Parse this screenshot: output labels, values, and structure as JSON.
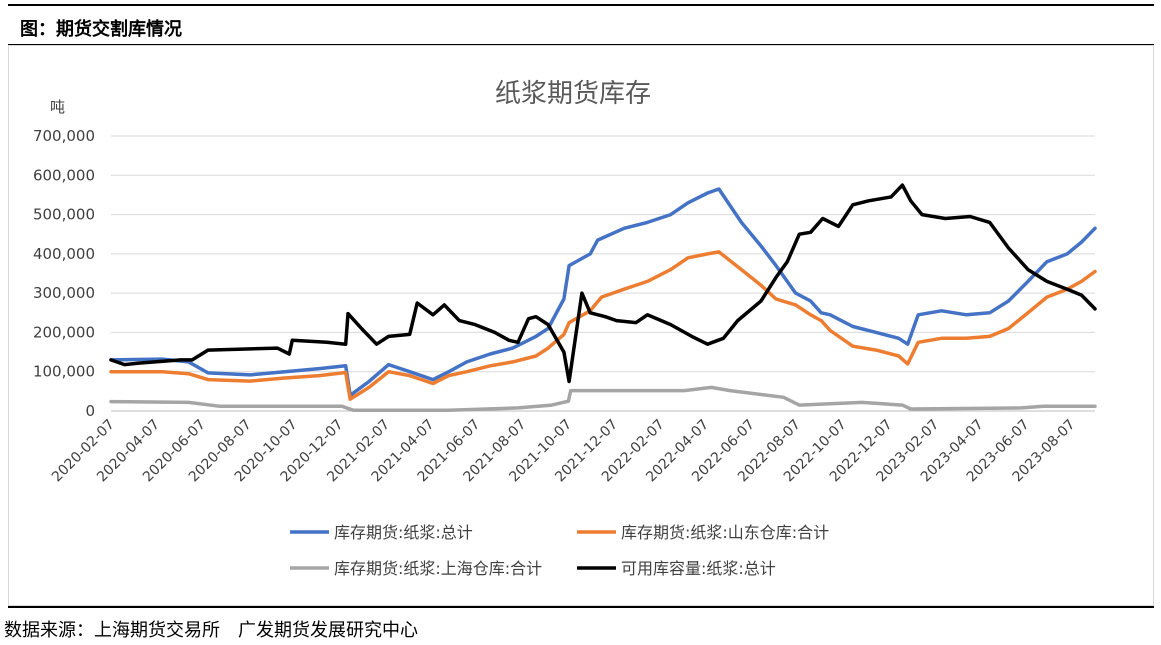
{
  "header": {
    "title": "图：期货交割库情况"
  },
  "footer": {
    "source": "数据来源：上海期货交易所　广发期货发展研究中心"
  },
  "chart_data": {
    "type": "line",
    "title": "纸浆期货库存",
    "ylabel": "吨",
    "ylim": [
      0,
      700000
    ],
    "yticks": [
      "0",
      "100,000",
      "200,000",
      "300,000",
      "400,000",
      "500,000",
      "600,000",
      "700,000"
    ],
    "x_range": [
      "2020-02-07",
      "2023-09-07"
    ],
    "xticks": [
      "2020-02-07",
      "2020-04-07",
      "2020-06-07",
      "2020-08-07",
      "2020-10-07",
      "2020-12-07",
      "2021-02-07",
      "2021-04-07",
      "2021-06-07",
      "2021-08-07",
      "2021-10-07",
      "2021-12-07",
      "2022-02-07",
      "2022-04-07",
      "2022-06-07",
      "2022-08-07",
      "2022-10-07",
      "2022-12-07",
      "2023-02-07",
      "2023-04-07",
      "2023-06-07",
      "2023-08-07"
    ],
    "grid": true,
    "legend_position": "bottom",
    "series": [
      {
        "name": "库存期货:纸浆:总计",
        "color": "#4472C4",
        "x": [
          "2020-02-07",
          "2020-04-15",
          "2020-05-20",
          "2020-06-15",
          "2020-08-10",
          "2020-09-25",
          "2020-11-10",
          "2020-12-15",
          "2020-12-21",
          "2021-01-15",
          "2021-02-10",
          "2021-03-10",
          "2021-04-10",
          "2021-05-01",
          "2021-05-25",
          "2021-06-25",
          "2021-07-25",
          "2021-08-25",
          "2021-09-10",
          "2021-10-01",
          "2021-10-08",
          "2021-11-05",
          "2021-11-15",
          "2021-12-20",
          "2022-01-20",
          "2022-02-20",
          "2022-03-15",
          "2022-04-10",
          "2022-04-25",
          "2022-05-25",
          "2022-06-20",
          "2022-07-10",
          "2022-08-05",
          "2022-08-25",
          "2022-09-08",
          "2022-09-20",
          "2022-10-20",
          "2022-11-20",
          "2022-12-20",
          "2023-01-01",
          "2023-01-15",
          "2023-02-15",
          "2023-03-20",
          "2023-04-20",
          "2023-05-15",
          "2023-06-10",
          "2023-07-05",
          "2023-08-01",
          "2023-08-20",
          "2023-09-07"
        ],
        "values": [
          130000,
          132000,
          125000,
          97000,
          92000,
          100000,
          108000,
          115000,
          40000,
          75000,
          118000,
          100000,
          80000,
          100000,
          125000,
          145000,
          160000,
          190000,
          210000,
          285000,
          370000,
          400000,
          435000,
          465000,
          480000,
          500000,
          530000,
          555000,
          565000,
          480000,
          420000,
          370000,
          300000,
          280000,
          250000,
          245000,
          215000,
          200000,
          185000,
          170000,
          245000,
          255000,
          245000,
          250000,
          280000,
          330000,
          380000,
          400000,
          430000,
          465000
        ]
      },
      {
        "name": "库存期货:纸浆:山东仓库:合计",
        "color": "#ED7D31",
        "x": [
          "2020-02-07",
          "2020-04-15",
          "2020-05-20",
          "2020-06-15",
          "2020-08-10",
          "2020-09-25",
          "2020-11-10",
          "2020-12-15",
          "2020-12-21",
          "2021-01-15",
          "2021-02-10",
          "2021-03-10",
          "2021-04-10",
          "2021-05-01",
          "2021-05-25",
          "2021-06-25",
          "2021-07-25",
          "2021-08-25",
          "2021-09-10",
          "2021-10-01",
          "2021-10-08",
          "2021-11-05",
          "2021-11-20",
          "2021-12-20",
          "2022-01-20",
          "2022-02-20",
          "2022-03-15",
          "2022-04-10",
          "2022-04-25",
          "2022-05-25",
          "2022-06-20",
          "2022-07-10",
          "2022-08-05",
          "2022-08-25",
          "2022-09-08",
          "2022-09-20",
          "2022-10-20",
          "2022-11-20",
          "2022-12-20",
          "2023-01-01",
          "2023-01-15",
          "2023-02-15",
          "2023-03-20",
          "2023-04-20",
          "2023-05-15",
          "2023-06-10",
          "2023-07-05",
          "2023-08-01",
          "2023-08-20",
          "2023-09-07"
        ],
        "values": [
          100000,
          100000,
          95000,
          80000,
          76000,
          84000,
          90000,
          98000,
          30000,
          60000,
          100000,
          90000,
          70000,
          90000,
          100000,
          115000,
          125000,
          140000,
          160000,
          195000,
          225000,
          255000,
          290000,
          310000,
          330000,
          360000,
          390000,
          400000,
          405000,
          360000,
          320000,
          285000,
          270000,
          245000,
          230000,
          205000,
          165000,
          155000,
          140000,
          120000,
          175000,
          185000,
          185000,
          190000,
          210000,
          250000,
          290000,
          310000,
          330000,
          355000
        ]
      },
      {
        "name": "库存期货:纸浆:上海仓库:合计",
        "color": "#A5A5A5",
        "x": [
          "2020-02-07",
          "2020-05-20",
          "2020-07-01",
          "2020-12-10",
          "2020-12-25",
          "2021-05-01",
          "2021-08-01",
          "2021-09-15",
          "2021-10-07",
          "2021-10-10",
          "2022-03-10",
          "2022-04-15",
          "2022-05-10",
          "2022-07-20",
          "2022-08-10",
          "2022-11-01",
          "2022-12-25",
          "2023-01-05",
          "2023-06-01",
          "2023-07-01",
          "2023-09-07"
        ],
        "values": [
          24000,
          22000,
          12000,
          12000,
          2000,
          2000,
          8000,
          15000,
          25000,
          52000,
          52000,
          60000,
          52000,
          35000,
          15000,
          22000,
          15000,
          5000,
          8000,
          12000,
          12000
        ]
      },
      {
        "name": "可用库容量:纸浆:总计",
        "color": "#000000",
        "x": [
          "2020-02-07",
          "2020-02-25",
          "2020-03-15",
          "2020-05-10",
          "2020-05-25",
          "2020-06-15",
          "2020-09-15",
          "2020-10-01",
          "2020-10-05",
          "2020-11-20",
          "2020-12-15",
          "2020-12-18",
          "2021-01-05",
          "2021-01-25",
          "2021-02-10",
          "2021-03-10",
          "2021-03-20",
          "2021-04-10",
          "2021-04-25",
          "2021-05-15",
          "2021-06-05",
          "2021-07-01",
          "2021-07-20",
          "2021-08-01",
          "2021-08-15",
          "2021-08-25",
          "2021-09-10",
          "2021-10-01",
          "2021-10-08",
          "2021-10-25",
          "2021-11-05",
          "2021-11-25",
          "2021-12-10",
          "2022-01-05",
          "2022-01-20",
          "2022-02-20",
          "2022-03-20",
          "2022-04-10",
          "2022-05-01",
          "2022-05-20",
          "2022-06-20",
          "2022-07-10",
          "2022-07-25",
          "2022-08-10",
          "2022-08-25",
          "2022-09-10",
          "2022-10-01",
          "2022-10-20",
          "2022-11-10",
          "2022-12-10",
          "2022-12-25",
          "2023-01-05",
          "2023-01-20",
          "2023-02-20",
          "2023-03-25",
          "2023-04-20",
          "2023-05-15",
          "2023-06-10",
          "2023-07-05",
          "2023-08-01",
          "2023-08-20",
          "2023-09-07"
        ],
        "values": [
          130000,
          118000,
          122000,
          130000,
          130000,
          155000,
          160000,
          145000,
          180000,
          175000,
          170000,
          248000,
          210000,
          170000,
          190000,
          195000,
          275000,
          245000,
          270000,
          230000,
          220000,
          200000,
          180000,
          175000,
          235000,
          240000,
          220000,
          150000,
          75000,
          300000,
          250000,
          240000,
          230000,
          225000,
          245000,
          220000,
          190000,
          170000,
          185000,
          230000,
          280000,
          340000,
          380000,
          450000,
          455000,
          490000,
          470000,
          525000,
          535000,
          545000,
          575000,
          535000,
          500000,
          490000,
          495000,
          480000,
          415000,
          360000,
          330000,
          310000,
          295000,
          260000
        ]
      }
    ]
  }
}
